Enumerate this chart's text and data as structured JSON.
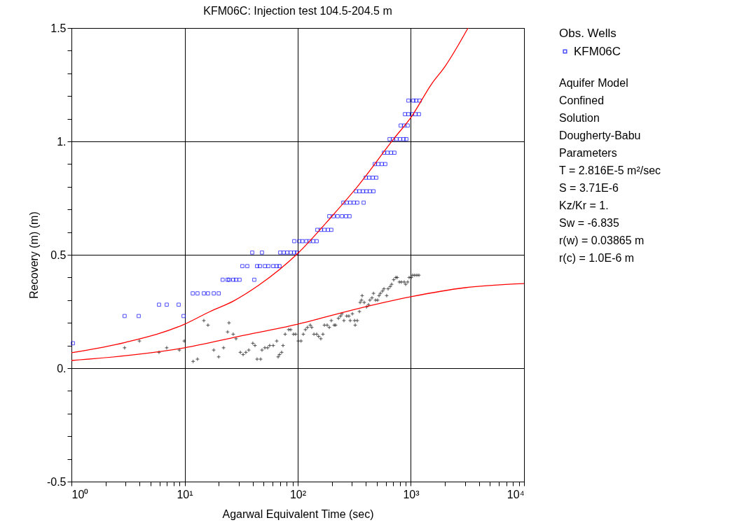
{
  "chart_data": {
    "type": "scatter",
    "title": "KFM06C: Injection test 104.5-204.5 m",
    "xlabel": "Agarwal Equivalent Time (sec)",
    "ylabel": "Recovery (m) (m)",
    "legend_title": "Obs. Wells",
    "legend": "right",
    "grid": true,
    "log": "x",
    "xlim": [
      1,
      10000
    ],
    "xticks": [
      {
        "value": 1,
        "label": "10⁰"
      },
      {
        "value": 2,
        "label": null
      },
      {
        "value": 3,
        "label": null
      },
      {
        "value": 4,
        "label": null
      },
      {
        "value": 5,
        "label": null
      },
      {
        "value": 6,
        "label": null
      },
      {
        "value": 7,
        "label": null
      },
      {
        "value": 8,
        "label": null
      },
      {
        "value": 9,
        "label": null
      },
      {
        "value": 10,
        "label": "10¹"
      },
      {
        "value": 20,
        "label": null
      },
      {
        "value": 30,
        "label": null
      },
      {
        "value": 40,
        "label": null
      },
      {
        "value": 50,
        "label": null
      },
      {
        "value": 60,
        "label": null
      },
      {
        "value": 70,
        "label": null
      },
      {
        "value": 80,
        "label": null
      },
      {
        "value": 90,
        "label": null
      },
      {
        "value": 100,
        "label": "10²"
      },
      {
        "value": 200,
        "label": null
      },
      {
        "value": 300,
        "label": null
      },
      {
        "value": 400,
        "label": null
      },
      {
        "value": 500,
        "label": null
      },
      {
        "value": 600,
        "label": null
      },
      {
        "value": 700,
        "label": null
      },
      {
        "value": 800,
        "label": null
      },
      {
        "value": 900,
        "label": null
      },
      {
        "value": 1000,
        "label": "10³"
      },
      {
        "value": 2000,
        "label": null
      },
      {
        "value": 3000,
        "label": null
      },
      {
        "value": 4000,
        "label": null
      },
      {
        "value": 5000,
        "label": null
      },
      {
        "value": 6000,
        "label": null
      },
      {
        "value": 7000,
        "label": null
      },
      {
        "value": 8000,
        "label": null
      },
      {
        "value": 9000,
        "label": null
      },
      {
        "value": 10000,
        "label": "10⁴"
      }
    ],
    "ylim": [
      -0.5,
      1.5
    ],
    "yticks": [
      {
        "value": -0.5,
        "label": "-0.5"
      },
      {
        "value": -0.4,
        "label": null
      },
      {
        "value": -0.3,
        "label": null
      },
      {
        "value": -0.2,
        "label": null
      },
      {
        "value": -0.1,
        "label": null
      },
      {
        "value": 0,
        "label": "0."
      },
      {
        "value": 0.1,
        "label": null
      },
      {
        "value": 0.2,
        "label": null
      },
      {
        "value": 0.3,
        "label": null
      },
      {
        "value": 0.4,
        "label": null
      },
      {
        "value": 0.5,
        "label": "0.5"
      },
      {
        "value": 0.6,
        "label": null
      },
      {
        "value": 0.7,
        "label": null
      },
      {
        "value": 0.8,
        "label": null
      },
      {
        "value": 0.9,
        "label": null
      },
      {
        "value": 1,
        "label": "1."
      },
      {
        "value": 1.1,
        "label": null
      },
      {
        "value": 1.2,
        "label": null
      },
      {
        "value": 1.3,
        "label": null
      },
      {
        "value": 1.4,
        "label": null
      },
      {
        "value": 1.5,
        "label": "1.5"
      }
    ],
    "series": [
      {
        "name": "KFM06C",
        "type": "scatter",
        "marker": "square",
        "color": "#0000ff",
        "x": [
          1.03,
          2.95,
          3.93,
          9.79,
          5.94,
          6.95,
          8.86,
          11.8,
          13.0,
          14.8,
          16.1,
          18.1,
          20.0,
          21.7,
          24.0,
          24.7,
          26.9,
          28.5,
          30.6,
          41.3,
          32.4,
          35.8,
          43.7,
          46.3,
          51.2,
          55.0,
          60.7,
          65.2,
          69.0,
          39.6,
          48.3,
          70.0,
          75.2,
          80.8,
          86.7,
          93.1,
          98.6,
          93.1,
          103,
          110,
          119,
          127,
          137,
          147,
          149,
          160,
          172,
          185,
          198,
          190,
          207,
          225,
          246,
          267,
          287,
          253,
          271,
          291,
          313,
          336,
          382,
          327,
          351,
          377,
          405,
          434,
          467,
          399,
          428,
          460,
          494,
          480,
          515,
          553,
          594,
          578,
          621,
          667,
          715,
          648,
          695,
          746,
          802,
          861,
          912,
          813,
          873,
          938,
          886,
          951,
          1021,
          1097,
          1178,
          951,
          1052,
          1112,
          1195
        ],
        "values": [
          0.11,
          0.23,
          0.23,
          0.23,
          0.28,
          0.28,
          0.28,
          0.33,
          0.33,
          0.33,
          0.33,
          0.33,
          0.33,
          0.39,
          0.39,
          0.39,
          0.39,
          0.39,
          0.39,
          0.39,
          0.45,
          0.45,
          0.45,
          0.45,
          0.45,
          0.45,
          0.45,
          0.45,
          0.45,
          0.51,
          0.51,
          0.51,
          0.51,
          0.51,
          0.51,
          0.51,
          0.51,
          0.56,
          0.56,
          0.56,
          0.56,
          0.56,
          0.56,
          0.56,
          0.61,
          0.61,
          0.61,
          0.61,
          0.61,
          0.67,
          0.67,
          0.67,
          0.67,
          0.67,
          0.67,
          0.73,
          0.73,
          0.73,
          0.73,
          0.73,
          0.73,
          0.78,
          0.78,
          0.78,
          0.78,
          0.78,
          0.78,
          0.84,
          0.84,
          0.84,
          0.84,
          0.9,
          0.9,
          0.9,
          0.9,
          0.95,
          0.95,
          0.95,
          0.95,
          1.01,
          1.01,
          1.01,
          1.01,
          1.01,
          1.01,
          1.07,
          1.07,
          1.07,
          1.12,
          1.12,
          1.12,
          1.12,
          1.12,
          1.18,
          1.18,
          1.18,
          1.18
        ]
      },
      {
        "type": "scatter",
        "marker": "cross",
        "color": "#000000",
        "x": [
          2.95,
          3.99,
          5.94,
          6.95,
          8.99,
          9.93,
          11.9,
          13.0,
          14.8,
          16.1,
          18.1,
          20.0,
          22.1,
          24.0,
          24.7,
          26.9,
          28.5,
          31.1,
          32.9,
          34.8,
          36.9,
          40.1,
          41.9,
          43.7,
          47.0,
          48.3,
          51.2,
          54.2,
          56.5,
          60.7,
          65.2,
          67.1,
          69.0,
          72.1,
          74.1,
          77.4,
          83.2,
          86.7,
          91.8,
          95.8,
          101,
          107,
          112,
          117,
          122,
          129,
          133,
          139,
          147,
          153,
          160,
          167,
          172,
          182,
          190,
          198,
          210,
          216,
          229,
          239,
          246,
          256,
          271,
          283,
          291,
          304,
          318,
          322,
          336,
          351,
          356,
          366,
          371,
          387,
          405,
          422,
          434,
          453,
          467,
          487,
          508,
          523,
          538,
          561,
          578,
          611,
          629,
          656,
          676,
          705,
          736,
          757,
          791,
          824,
          873,
          899,
          938,
          966,
          1007,
          1036,
          1081,
          1130,
          1178
        ],
        "values": [
          0.09,
          0.12,
          0.07,
          0.09,
          0.08,
          0.12,
          0.03,
          0.04,
          0.21,
          0.19,
          0.08,
          0.05,
          0.09,
          0.16,
          0.2,
          0.15,
          0.13,
          0.07,
          0.06,
          0.07,
          0.08,
          0.11,
          0.1,
          0.04,
          0.04,
          0.08,
          0.09,
          0.09,
          0.1,
          0.1,
          0.12,
          0.05,
          0.06,
          0.07,
          0.1,
          0.15,
          0.17,
          0.17,
          0.15,
          0.15,
          0.12,
          0.12,
          0.15,
          0.17,
          0.18,
          0.19,
          0.18,
          0.15,
          0.15,
          0.14,
          0.13,
          0.15,
          0.19,
          0.19,
          0.18,
          0.21,
          0.19,
          0.19,
          0.22,
          0.23,
          0.24,
          0.21,
          0.23,
          0.23,
          0.21,
          0.24,
          0.21,
          0.19,
          0.21,
          0.25,
          0.29,
          0.3,
          0.32,
          0.29,
          0.27,
          0.28,
          0.3,
          0.31,
          0.33,
          0.3,
          0.3,
          0.32,
          0.33,
          0.34,
          0.35,
          0.32,
          0.35,
          0.36,
          0.37,
          0.39,
          0.4,
          0.4,
          0.38,
          0.38,
          0.38,
          0.37,
          0.38,
          0.4,
          0.4,
          0.41,
          0.41,
          0.41,
          0.41
        ]
      },
      {
        "type": "line",
        "color": "#ff0000",
        "x": [
          1,
          3,
          10,
          16.8,
          27,
          45.6,
          100,
          203,
          336,
          715,
          1000,
          1523,
          2000,
          3199
        ],
        "values": [
          0.068,
          0.114,
          0.194,
          0.25,
          0.296,
          0.367,
          0.506,
          0.673,
          0.8,
          1.015,
          1.105,
          1.253,
          1.33,
          1.5
        ]
      },
      {
        "type": "line",
        "color": "#ff0000",
        "x": [
          1,
          3,
          10,
          30,
          100,
          300,
          1000,
          3000,
          10000
        ],
        "values": [
          0.034,
          0.055,
          0.09,
          0.14,
          0.194,
          0.256,
          0.315,
          0.355,
          0.373
        ]
      }
    ],
    "annotations": [
      "Aquifer Model",
      "Confined",
      "Solution",
      "Dougherty-Babu",
      "Parameters",
      "T = 2.816E-5 m²/sec",
      "S = 3.71E-6",
      "Kz/Kr = 1.",
      "Sw = -6.835",
      "r(w) = 0.03865 m",
      "r(c) = 1.0E-6 m"
    ]
  }
}
